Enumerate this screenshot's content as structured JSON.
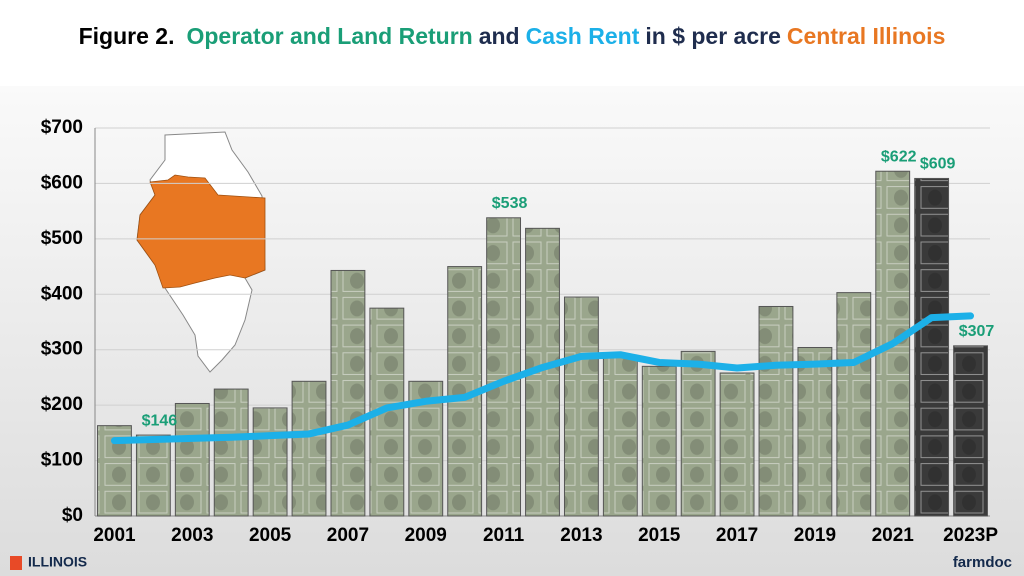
{
  "chart_data": {
    "type": "bar",
    "title_parts": [
      {
        "text": "Figure 2.",
        "color": "#000000"
      },
      {
        "text": "Operator and Land Return",
        "color": "#1a9e77"
      },
      {
        "text": "and",
        "color": "#1f2d4e"
      },
      {
        "text": "Cash Rent",
        "color": "#1cb0e8"
      },
      {
        "text": "in $ per acre",
        "color": "#1f2d4e"
      },
      {
        "text": "Central Illinois",
        "color": "#e87722"
      }
    ],
    "categories": [
      "2001",
      null,
      "2003",
      null,
      "2005",
      null,
      "2007",
      null,
      "2009",
      null,
      "2011",
      null,
      "2013",
      null,
      "2015",
      null,
      "2017",
      null,
      "2019",
      null,
      "2021",
      null,
      "2023P"
    ],
    "series": [
      {
        "type": "bar",
        "colors": [
          "#9aa68c",
          "#9aa68c",
          "#9aa68c",
          "#9aa68c",
          "#9aa68c",
          "#9aa68c",
          "#9aa68c",
          "#9aa68c",
          "#9aa68c",
          "#9aa68c",
          "#9aa68c",
          "#9aa68c",
          "#9aa68c",
          "#9aa68c",
          "#9aa68c",
          "#9aa68c",
          "#9aa68c",
          "#9aa68c",
          "#9aa68c",
          "#9aa68c",
          "#9aa68c",
          "#3a3a3a",
          "#3a3a3a"
        ],
        "values": [
          163,
          146,
          203,
          229,
          195,
          243,
          443,
          375,
          243,
          450,
          538,
          519,
          395,
          288,
          270,
          297,
          258,
          378,
          304,
          403,
          622,
          609,
          307
        ],
        "value_labels": [
          null,
          "$146",
          null,
          null,
          null,
          null,
          null,
          null,
          null,
          null,
          "$538",
          null,
          null,
          null,
          null,
          null,
          null,
          null,
          null,
          null,
          "$622",
          "$609",
          "$307"
        ],
        "label_color": "#1a9e77"
      },
      {
        "type": "line",
        "color": "#1cb0e8",
        "values": [
          136,
          138,
          140,
          142,
          145,
          148,
          164,
          195,
          207,
          214,
          243,
          268,
          288,
          291,
          277,
          274,
          267,
          272,
          274,
          277,
          311,
          358,
          361
        ]
      }
    ],
    "ylim": [
      0,
      700
    ],
    "yticks": [
      {
        "value": 0,
        "label": "$0"
      },
      {
        "value": 100,
        "label": "$100"
      },
      {
        "value": 200,
        "label": "$200"
      },
      {
        "value": 300,
        "label": "$300"
      },
      {
        "value": 400,
        "label": "$400"
      },
      {
        "value": 500,
        "label": "$500"
      },
      {
        "value": 600,
        "label": "$600"
      },
      {
        "value": 700,
        "label": "$700"
      }
    ],
    "footer_left": "ILLINOIS",
    "footer_right": "farmdoc"
  }
}
